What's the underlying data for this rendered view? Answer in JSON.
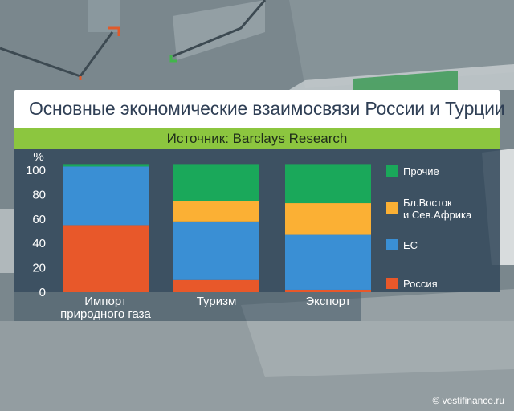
{
  "header": {
    "title": "Основные экономические взаимосвязи России и Турции",
    "source": "Источник: Barclays Research"
  },
  "watermark": "© vestifinance.ru",
  "colors": {
    "accent_green": "#8cc63f",
    "title_text": "#2f3f55",
    "panel": "#344a5c"
  },
  "chart_data": {
    "type": "bar",
    "stacked": true,
    "ylabel": "%",
    "ylim": [
      0,
      105
    ],
    "yticks": [
      "100",
      "80",
      "60",
      "40",
      "20",
      "0"
    ],
    "ytick_values": [
      100,
      80,
      60,
      40,
      20,
      0
    ],
    "categories": [
      [
        "Импорт",
        "природного газа"
      ],
      [
        "Туризм"
      ],
      [
        "Экспорт"
      ]
    ],
    "series": [
      {
        "name": "Россия",
        "color": "#e8582a",
        "values": [
          55,
          10,
          2
        ]
      },
      {
        "name": "ЕС",
        "color": "#3a8fd4",
        "values": [
          48,
          48,
          45
        ]
      },
      {
        "name": [
          "Бл.Восток",
          "и Сев.Африка"
        ],
        "color": "#fbb034",
        "values": [
          0,
          17,
          26
        ]
      },
      {
        "name": "Прочие",
        "color": "#1aa85a",
        "values": [
          2,
          30,
          32
        ]
      }
    ],
    "legend_order": [
      3,
      2,
      1,
      0
    ],
    "legend_position": "right"
  }
}
